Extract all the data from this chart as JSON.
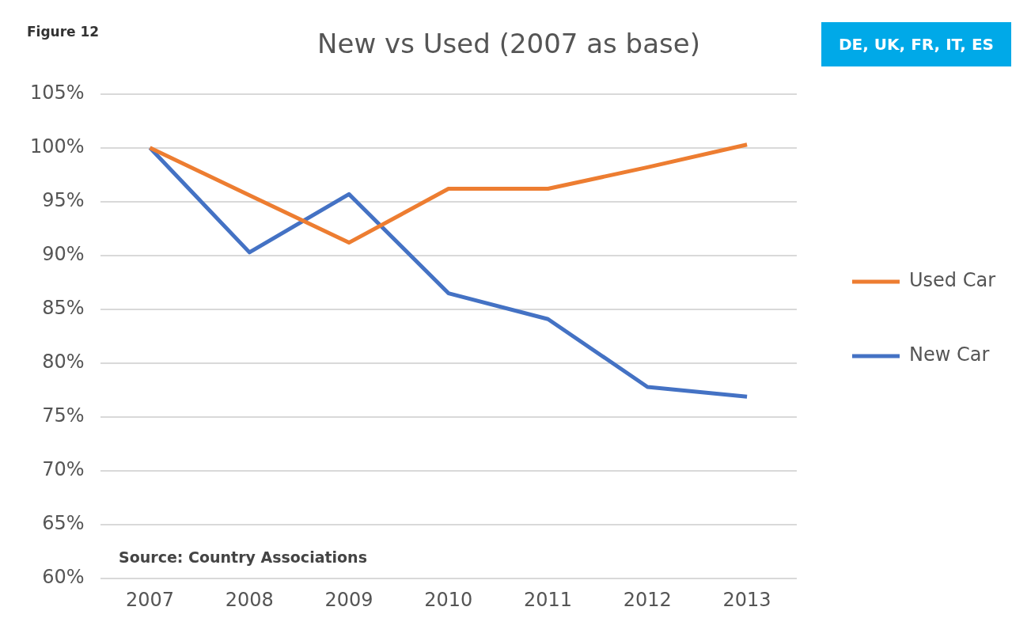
{
  "chart_data": {
    "type": "line",
    "title": "New vs Used (2007 as base)",
    "annotations": [
      "Figure 12",
      "DE, UK, FR, IT, ES",
      "Source: Country Associations"
    ],
    "categories": [
      "2007",
      "2008",
      "2009",
      "2010",
      "2011",
      "2012",
      "2013"
    ],
    "series": [
      {
        "name": "Used Car",
        "color": "#ed7d31",
        "values": [
          100,
          95.6,
          91.2,
          96.2,
          96.2,
          98.2,
          100.3
        ]
      },
      {
        "name": "New Car",
        "color": "#4472c4",
        "values": [
          100,
          90.3,
          95.7,
          86.5,
          84.1,
          77.8,
          76.9
        ]
      }
    ],
    "ylim": [
      60,
      105
    ],
    "yticks": [
      {
        "value": 60,
        "label": "60%"
      },
      {
        "value": 65,
        "label": "65%"
      },
      {
        "value": 70,
        "label": "70%"
      },
      {
        "value": 75,
        "label": "75%"
      },
      {
        "value": 80,
        "label": "80%"
      },
      {
        "value": 85,
        "label": "85%"
      },
      {
        "value": 90,
        "label": "90%"
      },
      {
        "value": 95,
        "label": "95%"
      },
      {
        "value": 100,
        "label": "100%"
      },
      {
        "value": 105,
        "label": "105%"
      }
    ],
    "grid": "y",
    "legend": "right",
    "marker": "none",
    "line_style": "solid"
  }
}
